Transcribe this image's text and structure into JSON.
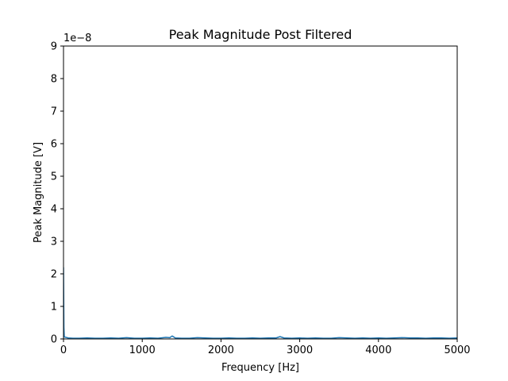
{
  "chart_data": {
    "type": "line",
    "title": "Peak Magnitude Post Filtered",
    "xlabel": "Frequency [Hz]",
    "ylabel": "Peak Magnitude [V]",
    "y_offset_label": "1e−8",
    "xlim": [
      0,
      5000
    ],
    "ylim": [
      0,
      9
    ],
    "x_ticks": [
      0,
      1000,
      2000,
      3000,
      4000,
      5000
    ],
    "y_ticks": [
      0,
      1,
      2,
      3,
      4,
      5,
      6,
      7,
      8,
      9
    ],
    "grid": false,
    "series": [
      {
        "color": "#1f77b4",
        "x": [
          0,
          5,
          10,
          60,
          120,
          200,
          300,
          400,
          500,
          600,
          700,
          800,
          900,
          1000,
          1100,
          1200,
          1300,
          1350,
          1380,
          1420,
          1500,
          1600,
          1700,
          1800,
          1900,
          2000,
          2100,
          2200,
          2300,
          2400,
          2500,
          2600,
          2700,
          2750,
          2800,
          2900,
          3000,
          3100,
          3200,
          3300,
          3400,
          3500,
          3600,
          3700,
          3800,
          3900,
          4000,
          4100,
          4200,
          4300,
          4400,
          4500,
          4600,
          4700,
          4800,
          4900,
          5000
        ],
        "values": [
          2.2,
          0.35,
          0.06,
          0.03,
          0.02,
          0.02,
          0.03,
          0.02,
          0.02,
          0.03,
          0.02,
          0.04,
          0.02,
          0.02,
          0.03,
          0.02,
          0.05,
          0.04,
          0.09,
          0.03,
          0.02,
          0.02,
          0.04,
          0.03,
          0.02,
          0.02,
          0.03,
          0.02,
          0.02,
          0.03,
          0.02,
          0.03,
          0.03,
          0.07,
          0.03,
          0.02,
          0.03,
          0.02,
          0.03,
          0.02,
          0.02,
          0.04,
          0.03,
          0.02,
          0.03,
          0.02,
          0.03,
          0.02,
          0.03,
          0.04,
          0.03,
          0.03,
          0.02,
          0.03,
          0.03,
          0.02,
          0.03
        ]
      }
    ]
  }
}
